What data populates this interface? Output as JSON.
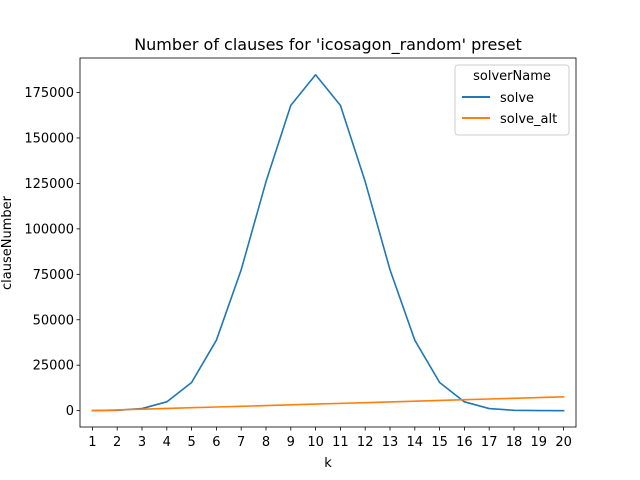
{
  "chart_data": {
    "type": "line",
    "title": "Number of clauses for 'icosagon_random' preset",
    "xlabel": "k",
    "ylabel": "clauseNumber",
    "x": [
      1,
      2,
      3,
      4,
      5,
      6,
      7,
      8,
      9,
      10,
      11,
      12,
      13,
      14,
      15,
      16,
      17,
      18,
      19,
      20
    ],
    "xlim": [
      0.5,
      20.5
    ],
    "ylim": [
      -9000,
      194000
    ],
    "yticks": [
      0,
      25000,
      50000,
      75000,
      100000,
      125000,
      150000,
      175000
    ],
    "grid": false,
    "legend": {
      "title": "solverName",
      "placement": "top-right"
    },
    "series": [
      {
        "name": "solve",
        "color": "#1f77b4",
        "values": [
          20,
          190,
          1140,
          4845,
          15504,
          38760,
          77520,
          125970,
          167960,
          184756,
          167960,
          125970,
          77520,
          38760,
          15504,
          4845,
          1140,
          190,
          20,
          0
        ]
      },
      {
        "name": "solve_alt",
        "color": "#ff7f0e",
        "values": [
          0,
          400,
          800,
          1200,
          1600,
          2000,
          2400,
          2800,
          3200,
          3600,
          4000,
          4400,
          4800,
          5200,
          5600,
          6000,
          6400,
          6800,
          7200,
          7600
        ]
      }
    ]
  }
}
